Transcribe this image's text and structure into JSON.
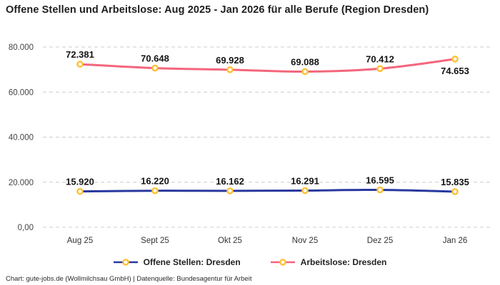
{
  "title": "Offene Stellen und Arbeitslose: Aug 2025 - Jan 2026 für alle Berufe (Region Dresden)",
  "footer": "Chart: gute-jobs.de (Wollmilchsau GmbH) | Datenquelle: Bundesagentur für Arbeit",
  "chart_data": {
    "type": "line",
    "title": "Offene Stellen und Arbeitslose: Aug 2025 - Jan 2026 für alle Berufe (Region Dresden)",
    "categories": [
      "Aug 25",
      "Sept 25",
      "Okt 25",
      "Nov 25",
      "Dez 25",
      "Jan 26"
    ],
    "series": [
      {
        "name": "Offene Stellen: Dresden",
        "values": [
          15920,
          16220,
          16162,
          16291,
          16595,
          15835
        ],
        "labels": [
          "15.920",
          "16.220",
          "16.162",
          "16.291",
          "16.595",
          "15.835"
        ],
        "color": "#28389E",
        "label_below": [
          false,
          false,
          false,
          false,
          false,
          false
        ]
      },
      {
        "name": "Arbeitslose: Dresden",
        "values": [
          72381,
          70648,
          69928,
          69088,
          70412,
          74653
        ],
        "labels": [
          "72.381",
          "70.648",
          "69.928",
          "69.088",
          "70.412",
          "74.653"
        ],
        "color": "#F4657D",
        "label_below": [
          false,
          false,
          false,
          false,
          false,
          true
        ]
      }
    ],
    "marker": {
      "fill": "#ffffff",
      "stroke": "#FCC032"
    },
    "ylim": [
      0,
      80000
    ],
    "yticks": [
      {
        "value": 0,
        "label": "0,00"
      },
      {
        "value": 20000,
        "label": "20.000"
      },
      {
        "value": 40000,
        "label": "40.000"
      },
      {
        "value": 60000,
        "label": "60.000"
      },
      {
        "value": 80000,
        "label": "80.000"
      }
    ],
    "grid": "dashed",
    "grid_color": "#cccccc",
    "legend_position": "bottom"
  }
}
